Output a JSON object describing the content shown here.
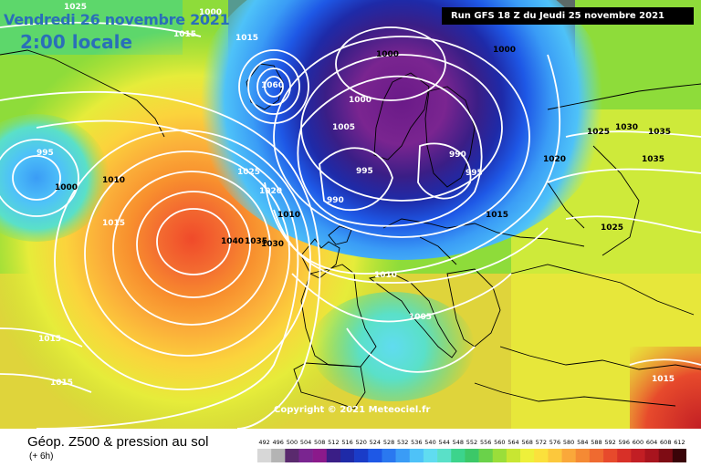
{
  "header": {
    "date_text": "Vendredi 26 novembre 2021",
    "time_text": "2:00 locale",
    "run_text": "Run GFS 18 Z du Jeudi 25 novembre 2021"
  },
  "copyright": "Copyright © 2021 Meteociel.fr",
  "footer": {
    "title": "Géop. Z500 & pression au sol",
    "subtitle": "(+ 6h)"
  },
  "scale": {
    "labels": [
      "492",
      "496",
      "500",
      "504",
      "508",
      "512",
      "516",
      "520",
      "524",
      "528",
      "532",
      "536",
      "540",
      "544",
      "548",
      "552",
      "556",
      "560",
      "564",
      "568",
      "572",
      "576",
      "580",
      "584",
      "588",
      "592",
      "596",
      "600",
      "604",
      "608",
      "612"
    ],
    "colors": [
      "#d7d7d7",
      "#b4b4b4",
      "#5a2a6e",
      "#7a2590",
      "#8b1a8b",
      "#3a1e86",
      "#1e2aa8",
      "#1a3cc8",
      "#1e58e6",
      "#2a78f0",
      "#3a9cf6",
      "#4ec2f8",
      "#60dcf0",
      "#5ae0c8",
      "#3cd48c",
      "#3cc868",
      "#6ad24a",
      "#9ade3a",
      "#c8e632",
      "#eef03a",
      "#fbe13c",
      "#fcc83c",
      "#faa83a",
      "#f58a34",
      "#ef6a30",
      "#e74a2c",
      "#d83028",
      "#c21e24",
      "#a8141e",
      "#7e0c14",
      "#3a0408"
    ]
  },
  "isobars": [
    {
      "label": "1025",
      "color": "white"
    },
    {
      "label": "1000",
      "color": "white"
    },
    {
      "label": "1015",
      "color": "white"
    },
    {
      "label": "1015",
      "color": "white"
    },
    {
      "label": "1000",
      "color": "black"
    },
    {
      "label": "1000",
      "color": "black"
    },
    {
      "label": "1060",
      "color": "white"
    },
    {
      "label": "1000",
      "color": "white"
    },
    {
      "label": "1005",
      "color": "white"
    },
    {
      "label": "1025",
      "color": "black"
    },
    {
      "label": "1030",
      "color": "black"
    },
    {
      "label": "1035",
      "color": "black"
    },
    {
      "label": "995",
      "color": "white"
    },
    {
      "label": "1000",
      "color": "black"
    },
    {
      "label": "1010",
      "color": "black"
    },
    {
      "label": "995",
      "color": "white"
    },
    {
      "label": "990",
      "color": "white"
    },
    {
      "label": "995",
      "color": "white"
    },
    {
      "label": "1020",
      "color": "black"
    },
    {
      "label": "1035",
      "color": "black"
    },
    {
      "label": "1025",
      "color": "white"
    },
    {
      "label": "1015",
      "color": "white"
    },
    {
      "label": "1020",
      "color": "white"
    },
    {
      "label": "1040",
      "color": "black"
    },
    {
      "label": "1035",
      "color": "black"
    },
    {
      "label": "1030",
      "color": "black"
    },
    {
      "label": "990",
      "color": "white"
    },
    {
      "label": "1015",
      "color": "black"
    },
    {
      "label": "1010",
      "color": "white"
    },
    {
      "label": "1025",
      "color": "black"
    },
    {
      "label": "1005",
      "color": "white"
    },
    {
      "label": "1015",
      "color": "white"
    },
    {
      "label": "1015",
      "color": "white"
    },
    {
      "label": "1015",
      "color": "white"
    },
    {
      "label": "1010",
      "color": "black"
    }
  ]
}
